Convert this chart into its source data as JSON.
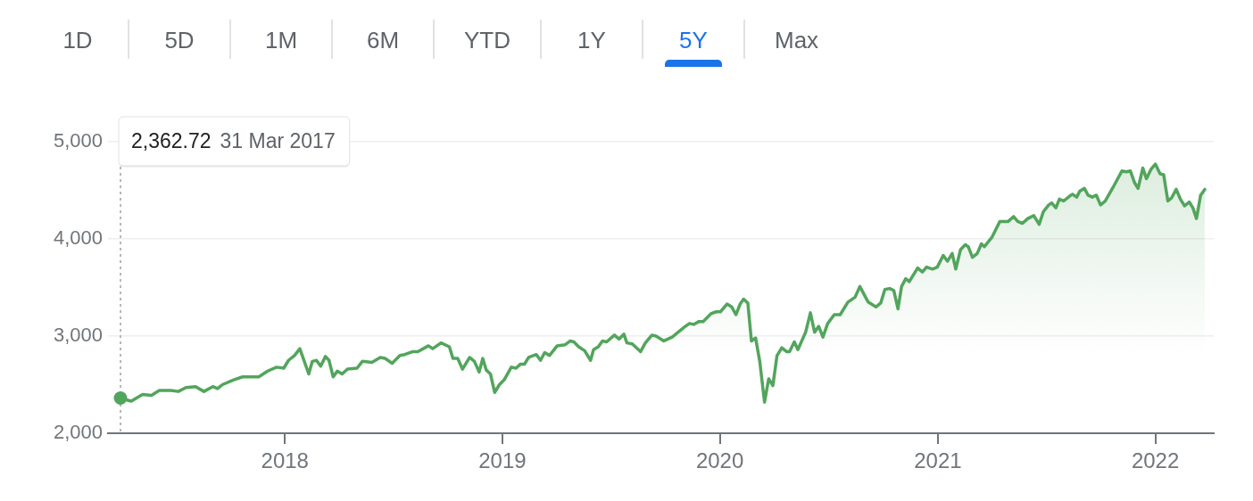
{
  "chart_data": [
    {
      "type": "other",
      "categories": [
        "1D",
        "5D",
        "1M",
        "6M",
        "YTD",
        "1Y",
        "5Y",
        "Max"
      ],
      "colors": [
        "#5f6368",
        "#5f6368",
        "#5f6368",
        "#5f6368",
        "#5f6368",
        "#5f6368",
        "#1a73e8",
        "#5f6368"
      ]
    },
    {
      "type": "area",
      "series": [
        {
          "type": "area",
          "color": "#52a55c",
          "x": [
            "2017-03-31",
            "2017-04-18",
            "2017-05-07",
            "2017-05-22",
            "2017-06-04",
            "2017-06-24",
            "2017-07-06",
            "2017-07-19",
            "2017-08-04",
            "2017-08-18",
            "2017-09-02",
            "2017-09-10",
            "2017-09-18",
            "2017-10-07",
            "2017-10-22",
            "2017-11-18",
            "2017-12-03",
            "2017-12-18",
            "2017-12-30",
            "2018-01-07",
            "2018-01-17",
            "2018-01-26",
            "2018-02-10",
            "2018-02-16",
            "2018-02-23",
            "2018-03-02",
            "2018-03-10",
            "2018-03-16",
            "2018-03-23",
            "2018-03-30",
            "2018-04-07",
            "2018-04-16",
            "2018-05-02",
            "2018-05-11",
            "2018-05-27",
            "2018-06-10",
            "2018-06-18",
            "2018-06-30",
            "2018-07-13",
            "2018-07-21",
            "2018-08-04",
            "2018-08-12",
            "2018-08-30",
            "2018-09-06",
            "2018-09-20",
            "2018-10-04",
            "2018-10-10",
            "2018-10-18",
            "2018-10-26",
            "2018-11-07",
            "2018-11-15",
            "2018-11-23",
            "2018-11-29",
            "2018-12-05",
            "2018-12-12",
            "2018-12-19",
            "2018-12-27",
            "2019-01-04",
            "2019-01-16",
            "2019-01-24",
            "2019-01-31",
            "2019-02-07",
            "2019-02-14",
            "2019-02-27",
            "2019-03-06",
            "2019-03-13",
            "2019-03-21",
            "2019-04-03",
            "2019-04-16",
            "2019-04-25",
            "2019-05-01",
            "2019-05-09",
            "2019-05-19",
            "2019-05-29",
            "2019-06-03",
            "2019-06-11",
            "2019-06-18",
            "2019-06-25",
            "2019-07-08",
            "2019-07-16",
            "2019-07-24",
            "2019-07-29",
            "2019-08-07",
            "2019-08-21",
            "2019-08-29",
            "2019-09-09",
            "2019-09-16",
            "2019-09-29",
            "2019-10-13",
            "2019-10-23",
            "2019-11-02",
            "2019-11-11",
            "2019-11-18",
            "2019-11-27",
            "2019-12-04",
            "2019-12-17",
            "2019-12-26",
            "2020-01-02",
            "2020-01-13",
            "2020-01-21",
            "2020-01-28",
            "2020-02-04",
            "2020-02-10",
            "2020-02-17",
            "2020-02-23",
            "2020-03-01",
            "2020-03-08",
            "2020-03-16",
            "2020-03-23",
            "2020-03-30",
            "2020-04-06",
            "2020-04-14",
            "2020-04-22",
            "2020-04-27",
            "2020-05-05",
            "2020-05-11",
            "2020-05-24",
            "2020-06-01",
            "2020-06-08",
            "2020-06-15",
            "2020-06-22",
            "2020-06-30",
            "2020-07-11",
            "2020-07-21",
            "2020-08-03",
            "2020-08-15",
            "2020-08-23",
            "2020-09-06",
            "2020-09-19",
            "2020-09-27",
            "2020-10-04",
            "2020-10-12",
            "2020-10-19",
            "2020-10-26",
            "2020-11-01",
            "2020-11-08",
            "2020-11-14",
            "2020-11-28",
            "2020-12-06",
            "2020-12-13",
            "2020-12-23",
            "2020-12-31",
            "2021-01-10",
            "2021-01-17",
            "2021-01-25",
            "2021-01-31",
            "2021-02-08",
            "2021-02-16",
            "2021-02-21",
            "2021-02-28",
            "2021-03-08",
            "2021-03-15",
            "2021-03-20",
            "2021-04-02",
            "2021-04-15",
            "2021-04-29",
            "2021-05-08",
            "2021-05-15",
            "2021-05-23",
            "2021-06-01",
            "2021-06-11",
            "2021-06-20",
            "2021-06-27",
            "2021-07-06",
            "2021-07-11",
            "2021-07-18",
            "2021-07-24",
            "2021-07-31",
            "2021-08-10",
            "2021-08-15",
            "2021-08-22",
            "2021-08-27",
            "2021-09-04",
            "2021-09-10",
            "2021-09-17",
            "2021-09-24",
            "2021-10-01",
            "2021-10-09",
            "2021-10-22",
            "2021-10-29",
            "2021-11-06",
            "2021-11-13",
            "2021-11-20",
            "2021-11-27",
            "2021-12-03",
            "2021-12-11",
            "2021-12-17",
            "2021-12-25",
            "2022-01-01",
            "2022-01-09",
            "2022-01-15",
            "2022-01-22",
            "2022-01-28",
            "2022-02-05",
            "2022-02-12",
            "2022-02-19",
            "2022-02-27",
            "2022-03-05",
            "2022-03-11",
            "2022-03-18",
            "2022-03-25"
          ],
          "values": [
            2360,
            2330,
            2400,
            2390,
            2440,
            2440,
            2430,
            2470,
            2480,
            2430,
            2480,
            2460,
            2500,
            2550,
            2580,
            2580,
            2640,
            2680,
            2670,
            2750,
            2800,
            2870,
            2610,
            2740,
            2750,
            2690,
            2790,
            2750,
            2580,
            2640,
            2610,
            2660,
            2670,
            2740,
            2730,
            2780,
            2770,
            2720,
            2800,
            2810,
            2840,
            2840,
            2900,
            2870,
            2930,
            2890,
            2770,
            2770,
            2660,
            2780,
            2740,
            2630,
            2770,
            2650,
            2610,
            2420,
            2500,
            2550,
            2680,
            2670,
            2710,
            2710,
            2780,
            2810,
            2750,
            2830,
            2800,
            2900,
            2910,
            2950,
            2940,
            2890,
            2850,
            2750,
            2860,
            2890,
            2950,
            2940,
            3010,
            2970,
            3020,
            2930,
            2920,
            2840,
            2930,
            3010,
            3000,
            2950,
            2990,
            3040,
            3090,
            3130,
            3120,
            3150,
            3150,
            3230,
            3250,
            3250,
            3330,
            3300,
            3220,
            3330,
            3380,
            3340,
            2950,
            2980,
            2740,
            2320,
            2560,
            2490,
            2800,
            2880,
            2840,
            2840,
            2940,
            2860,
            3040,
            3240,
            3040,
            3100,
            2990,
            3130,
            3220,
            3220,
            3350,
            3400,
            3510,
            3350,
            3300,
            3340,
            3480,
            3490,
            3470,
            3280,
            3510,
            3590,
            3560,
            3700,
            3660,
            3710,
            3690,
            3710,
            3830,
            3770,
            3850,
            3690,
            3890,
            3940,
            3920,
            3810,
            3850,
            3950,
            3920,
            4020,
            4180,
            4180,
            4230,
            4180,
            4160,
            4210,
            4240,
            4150,
            4280,
            4350,
            4370,
            4320,
            4410,
            4390,
            4440,
            4460,
            4430,
            4490,
            4520,
            4450,
            4430,
            4450,
            4350,
            4390,
            4530,
            4610,
            4700,
            4690,
            4700,
            4580,
            4520,
            4730,
            4620,
            4720,
            4770,
            4670,
            4660,
            4390,
            4420,
            4510,
            4410,
            4340,
            4380,
            4320,
            4210,
            4450,
            4510
          ]
        },
        {
          "type": "scatter",
          "color": "#52a55c",
          "marker": "circle",
          "x": [
            "2017-03-31"
          ],
          "values": [
            2362.72
          ]
        }
      ],
      "xlim": [
        "2017-03-10",
        "2022-04-09"
      ],
      "xticks": [
        "2018",
        "2019",
        "2020",
        "2021",
        "2022"
      ],
      "ylim": [
        2000,
        5000
      ],
      "yticks": [
        {
          "value": 2000,
          "label": "2,000"
        },
        {
          "value": 3000,
          "label": "3,000"
        },
        {
          "value": 4000,
          "label": "4,000"
        },
        {
          "value": 5000,
          "label": "5,000"
        }
      ],
      "grid": "y",
      "ref_lines": [
        {
          "axis": "x",
          "value": "2017-03-31",
          "color": "#9aa0a6",
          "line_style": "dotted"
        }
      ],
      "annotations": [
        "2,362.72",
        "31 Mar 2017"
      ]
    }
  ]
}
